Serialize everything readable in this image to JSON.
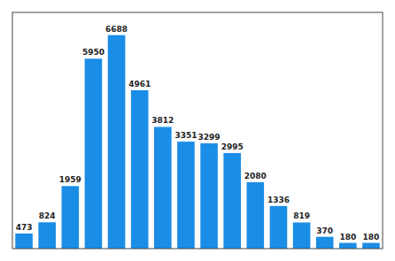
{
  "chart_data": {
    "type": "bar",
    "categories": [
      null,
      null,
      null,
      null,
      null,
      null,
      null,
      null,
      null,
      null,
      null,
      null,
      null,
      null,
      null,
      null
    ],
    "values": [
      473,
      824,
      1959,
      5950,
      6688,
      4961,
      3812,
      3351,
      3299,
      2995,
      2080,
      1336,
      819,
      370,
      180,
      180
    ],
    "color": "#1a8de6",
    "ylim": [
      0,
      7400
    ],
    "data_labels": true,
    "tick_labels": false
  }
}
